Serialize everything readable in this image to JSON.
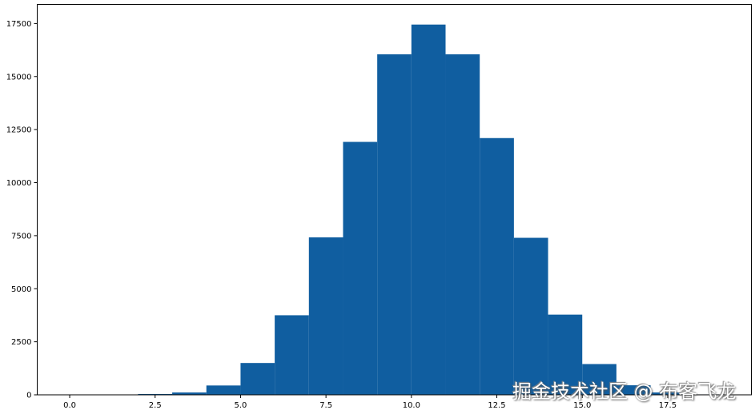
{
  "chart_data": {
    "type": "bar",
    "subtype": "histogram",
    "bin_edges": [
      2,
      3,
      4,
      5,
      6,
      7,
      8,
      9,
      10,
      11,
      12,
      13,
      14,
      15,
      16,
      17,
      18,
      19
    ],
    "values": [
      40,
      110,
      440,
      1500,
      3750,
      7420,
      11920,
      16050,
      17450,
      16050,
      12100,
      7400,
      3780,
      1450,
      450,
      110,
      20
    ],
    "xlim": [
      -0.95,
      19.95
    ],
    "ylim": [
      0,
      18400
    ],
    "xticks": [
      "0.0",
      "2.5",
      "5.0",
      "7.5",
      "10.0",
      "12.5",
      "15.0",
      "17.5"
    ],
    "xtick_values": [
      0,
      2.5,
      5,
      7.5,
      10,
      12.5,
      15,
      17.5
    ],
    "yticks": [
      "0",
      "2500",
      "5000",
      "7500",
      "10000",
      "12500",
      "15000",
      "17500"
    ],
    "ytick_values": [
      0,
      2500,
      5000,
      7500,
      10000,
      12500,
      15000,
      17500
    ],
    "bar_color": "#105ea0",
    "grid": false
  },
  "watermark": "掘金技术社区 @ 布客飞龙"
}
